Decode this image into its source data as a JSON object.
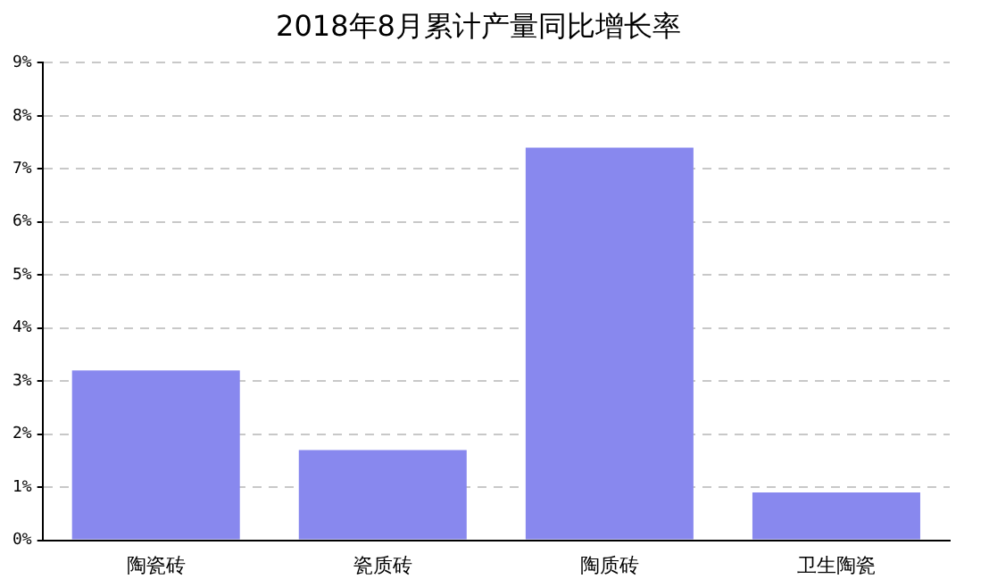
{
  "chart_data": {
    "type": "bar",
    "title": "2018年8月累计产量同比增长率",
    "categories": [
      "陶瓷砖",
      "瓷质砖",
      "陶质砖",
      "卫生陶瓷"
    ],
    "values": [
      3.2,
      1.7,
      7.4,
      0.9
    ],
    "color": "#8888ee",
    "ylim": [
      0,
      9
    ],
    "yticks": [
      {
        "value": 0,
        "label": "0%"
      },
      {
        "value": 1,
        "label": "1%"
      },
      {
        "value": 2,
        "label": "2%"
      },
      {
        "value": 3,
        "label": "3%"
      },
      {
        "value": 4,
        "label": "4%"
      },
      {
        "value": 5,
        "label": "5%"
      },
      {
        "value": 6,
        "label": "6%"
      },
      {
        "value": 7,
        "label": "7%"
      },
      {
        "value": 8,
        "label": "8%"
      },
      {
        "value": 9,
        "label": "9%"
      }
    ],
    "grid": "y",
    "legend": false
  }
}
